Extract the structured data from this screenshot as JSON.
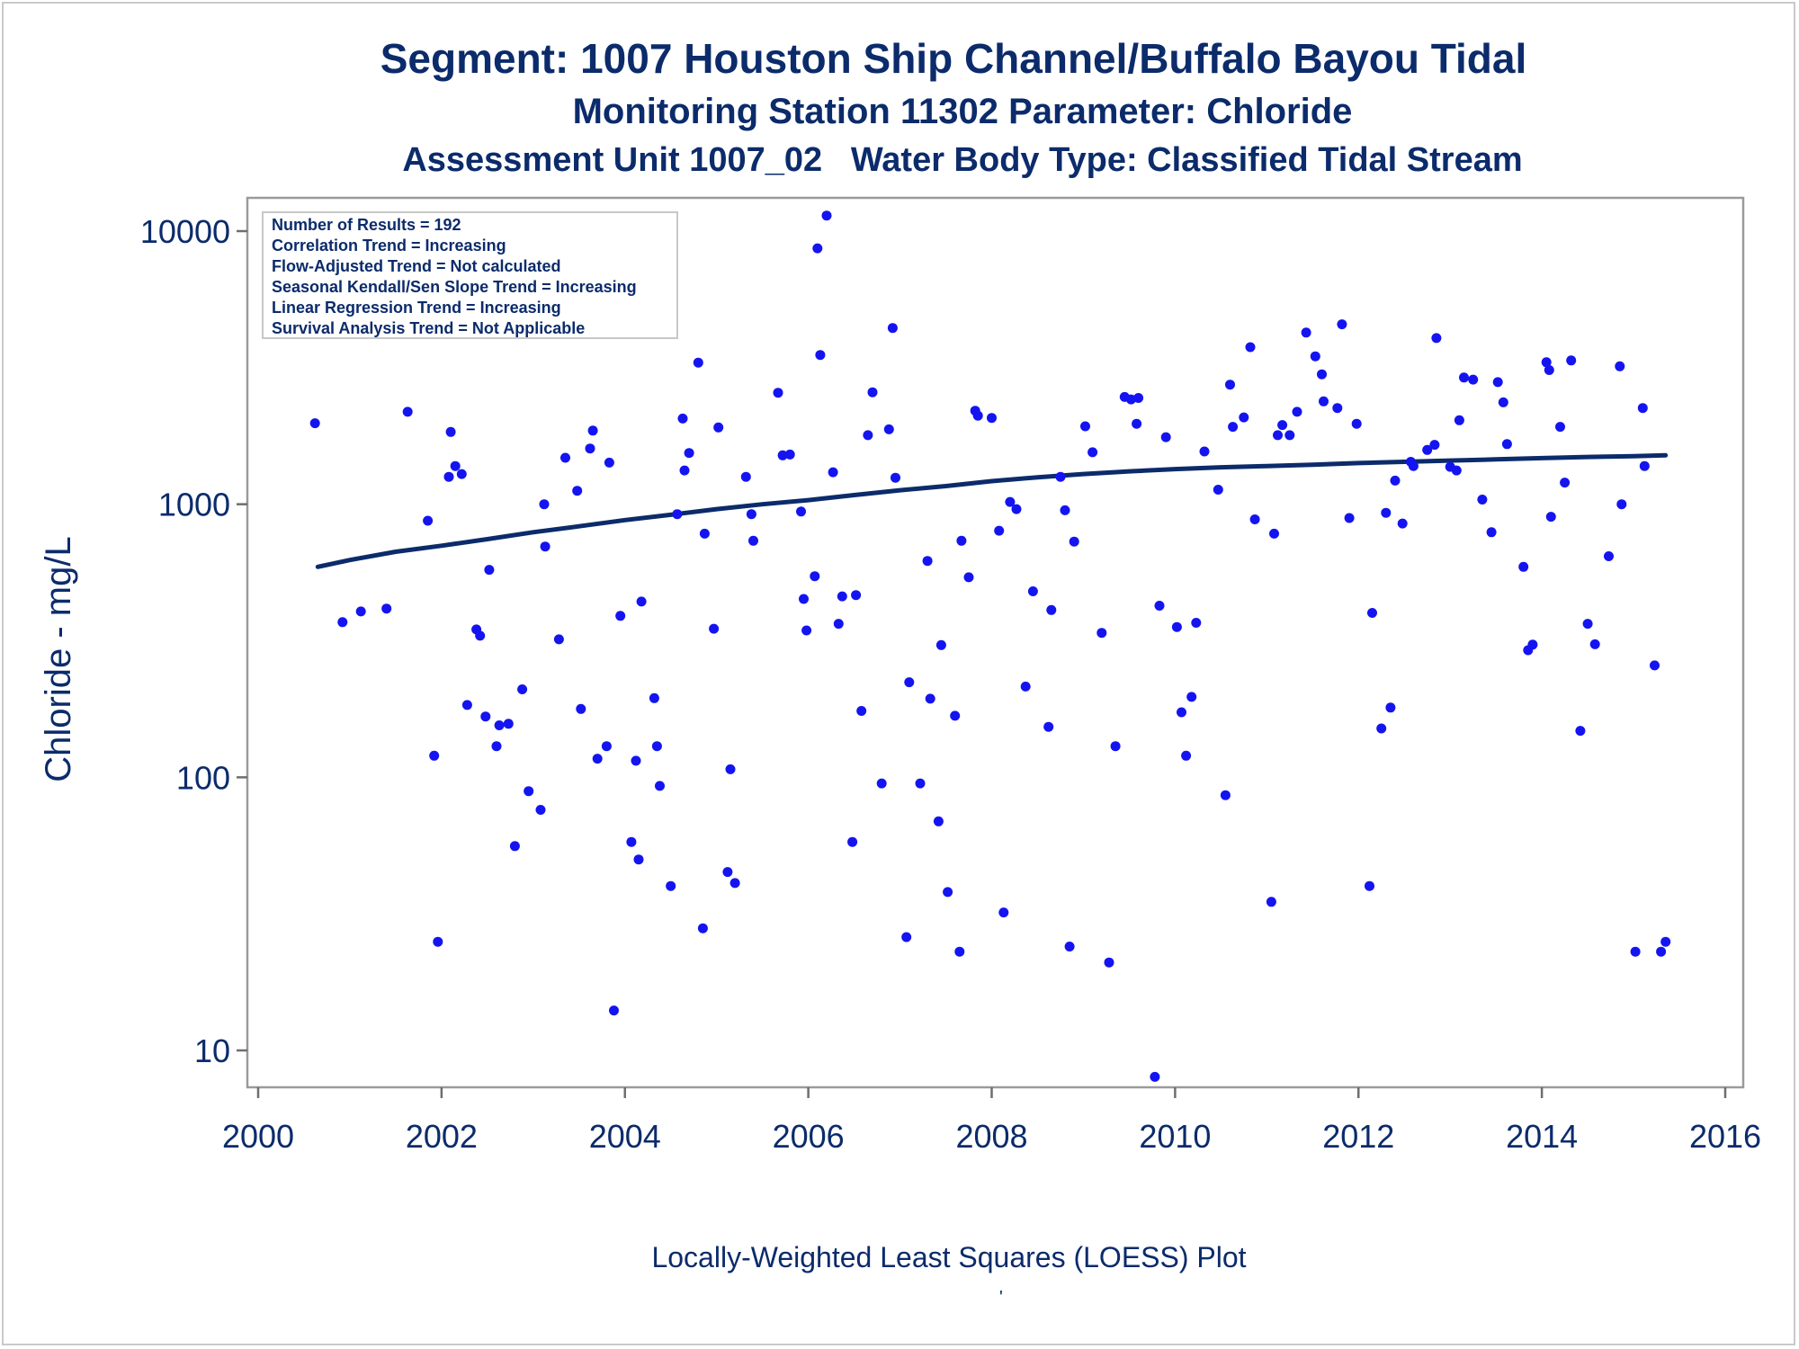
{
  "titles": {
    "line1": "Segment: 1007  Houston Ship Channel/Buffalo Bayou Tidal",
    "line2": "Monitoring Station 11302 Parameter: Chloride",
    "line3": "Assessment Unit 1007_02   Water Body Type: Classified Tidal Stream"
  },
  "footnote": "Locally-Weighted Least Squares (LOESS) Plot",
  "footnote_mark": "'",
  "colors": {
    "points": "#1414f0",
    "loess": "#0b2b6b",
    "text": "#0b2b6b",
    "frame": "#9a9a9a"
  },
  "chart_data": {
    "type": "scatter",
    "ylabel": "Chloride - mg/L",
    "xlabel": "",
    "xlim": [
      2000,
      2016
    ],
    "ylim": [
      8,
      13000
    ],
    "yscale": "log",
    "xticks": [
      "2000",
      "2002",
      "2004",
      "2006",
      "2008",
      "2010",
      "2012",
      "2014",
      "2016"
    ],
    "yticks": [
      "10",
      "100",
      "1000",
      "10000"
    ],
    "legend_position": "top-left",
    "stats": [
      "Number of Results = 192",
      "Correlation Trend = Increasing",
      "Flow-Adjusted Trend = Not calculated",
      "Seasonal Kendall/Sen Slope Trend = Increasing",
      "Linear Regression Trend = Increasing",
      "Survival Analysis Trend = Not Applicable"
    ],
    "loess": {
      "x": [
        2000.65,
        2001.0,
        2001.5,
        2002.0,
        2002.5,
        2003.0,
        2003.5,
        2004.0,
        2004.5,
        2005.0,
        2005.5,
        2006.0,
        2006.5,
        2007.0,
        2007.5,
        2008.0,
        2008.5,
        2009.0,
        2009.5,
        2010.0,
        2010.5,
        2011.0,
        2011.5,
        2012.0,
        2012.5,
        2013.0,
        2013.5,
        2014.0,
        2014.5,
        2015.0,
        2015.35
      ],
      "y": [
        590,
        625,
        670,
        705,
        745,
        790,
        830,
        875,
        915,
        960,
        1000,
        1035,
        1080,
        1125,
        1165,
        1215,
        1255,
        1290,
        1320,
        1345,
        1365,
        1380,
        1395,
        1415,
        1430,
        1445,
        1460,
        1475,
        1490,
        1500,
        1510
      ]
    },
    "points": {
      "x": [
        2000.62,
        2000.92,
        2001.12,
        2001.4,
        2001.63,
        2001.85,
        2001.92,
        2001.96,
        2002.08,
        2002.1,
        2002.15,
        2002.22,
        2002.28,
        2002.38,
        2002.42,
        2002.48,
        2002.52,
        2002.6,
        2002.63,
        2002.73,
        2002.8,
        2002.88,
        2002.95,
        2003.08,
        2003.12,
        2003.13,
        2003.28,
        2003.35,
        2003.48,
        2003.52,
        2003.62,
        2003.65,
        2003.7,
        2003.8,
        2003.83,
        2003.88,
        2003.95,
        2004.07,
        2004.12,
        2004.15,
        2004.18,
        2004.32,
        2004.35,
        2004.38,
        2004.5,
        2004.57,
        2004.63,
        2004.65,
        2004.7,
        2004.8,
        2004.85,
        2004.87,
        2004.97,
        2005.02,
        2005.12,
        2005.15,
        2005.2,
        2005.32,
        2005.38,
        2005.4,
        2005.67,
        2005.72,
        2005.8,
        2005.92,
        2005.95,
        2005.98,
        2006.07,
        2006.1,
        2006.13,
        2006.2,
        2006.27,
        2006.33,
        2006.37,
        2006.48,
        2006.52,
        2006.58,
        2006.65,
        2006.7,
        2006.8,
        2006.88,
        2006.92,
        2006.95,
        2007.07,
        2007.1,
        2007.22,
        2007.3,
        2007.33,
        2007.42,
        2007.45,
        2007.52,
        2007.6,
        2007.65,
        2007.67,
        2007.75,
        2007.82,
        2007.85,
        2008.0,
        2008.08,
        2008.13,
        2008.2,
        2008.27,
        2008.37,
        2008.45,
        2008.62,
        2008.65,
        2008.75,
        2008.8,
        2008.85,
        2008.9,
        2009.02,
        2009.1,
        2009.2,
        2009.28,
        2009.35,
        2009.45,
        2009.52,
        2009.58,
        2009.6,
        2009.78,
        2009.83,
        2009.9,
        2010.02,
        2010.07,
        2010.12,
        2010.18,
        2010.23,
        2010.32,
        2010.47,
        2010.55,
        2010.6,
        2010.63,
        2010.75,
        2010.82,
        2010.87,
        2011.05,
        2011.08,
        2011.12,
        2011.17,
        2011.25,
        2011.33,
        2011.43,
        2011.53,
        2011.6,
        2011.62,
        2011.77,
        2011.82,
        2011.9,
        2011.98,
        2012.12,
        2012.15,
        2012.25,
        2012.3,
        2012.35,
        2012.4,
        2012.48,
        2012.57,
        2012.6,
        2012.75,
        2012.83,
        2012.85,
        2013.0,
        2013.07,
        2013.1,
        2013.15,
        2013.25,
        2013.35,
        2013.45,
        2013.52,
        2013.58,
        2013.62,
        2013.8,
        2013.85,
        2013.9,
        2014.05,
        2014.08,
        2014.1,
        2014.2,
        2014.25,
        2014.32,
        2014.42,
        2014.5,
        2014.58,
        2014.73,
        2014.85,
        2014.87,
        2015.02,
        2015.1,
        2015.12,
        2015.23,
        2015.3,
        2015.35
      ],
      "y": [
        1980,
        370,
        405,
        415,
        2180,
        870,
        120,
        25,
        1260,
        1840,
        1380,
        1290,
        184,
        348,
        330,
        167,
        575,
        130,
        155,
        157,
        56,
        210,
        89,
        76,
        1000,
        700,
        320,
        1480,
        1120,
        178,
        1600,
        1860,
        117,
        130,
        1420,
        14,
        390,
        58,
        115,
        50,
        440,
        195,
        130,
        93,
        40,
        920,
        2060,
        1330,
        1540,
        3300,
        28,
        780,
        350,
        1910,
        45,
        107,
        41,
        1260,
        920,
        735,
        2560,
        1510,
        1520,
        940,
        450,
        345,
        545,
        8650,
        3520,
        11400,
        1310,
        365,
        460,
        58,
        465,
        175,
        1790,
        2570,
        95,
        1880,
        4420,
        1250,
        26,
        223,
        95,
        620,
        194,
        69,
        305,
        38,
        168,
        23,
        735,
        540,
        2200,
        2110,
        2070,
        800,
        32,
        1020,
        960,
        215,
        480,
        153,
        410,
        1260,
        950,
        24,
        730,
        1930,
        1550,
        338,
        21,
        130,
        2470,
        2420,
        1970,
        2450,
        8,
        425,
        1760,
        355,
        173,
        120,
        197,
        368,
        1560,
        1130,
        86,
        2740,
        1920,
        2080,
        3760,
        880,
        35,
        780,
        1790,
        1950,
        1790,
        2180,
        4250,
        3480,
        2990,
        2380,
        2250,
        4560,
        890,
        1970,
        40,
        400,
        151,
        930,
        180,
        1220,
        850,
        1430,
        1380,
        1580,
        1650,
        4060,
        1370,
        1330,
        2030,
        2910,
        2860,
        1040,
        790,
        2800,
        2360,
        1660,
        590,
        292,
        306,
        3310,
        3100,
        900,
        1920,
        1200,
        3360,
        148,
        365,
        307,
        645,
        3200,
        1000,
        23,
        2250,
        1380,
        257,
        23,
        25
      ]
    }
  }
}
